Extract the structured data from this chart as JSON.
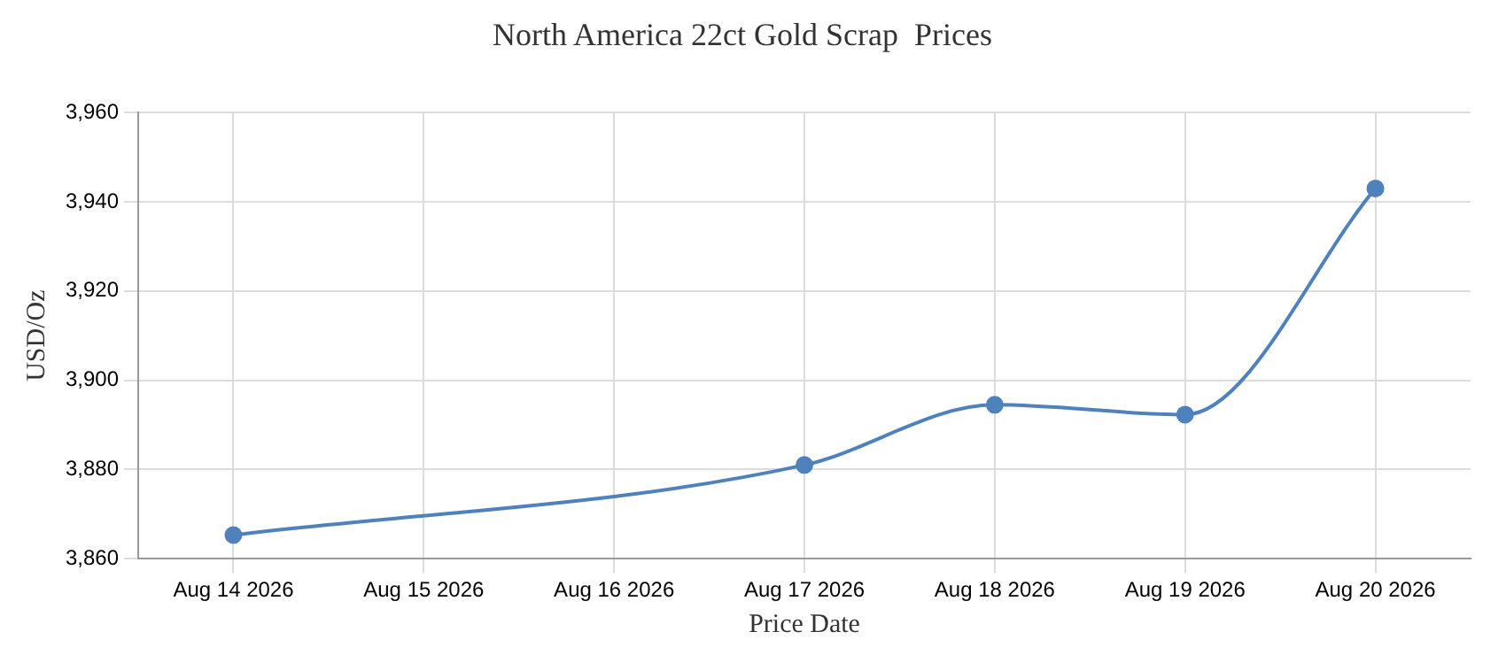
{
  "chart_data": {
    "type": "line",
    "title": "North America 22ct Gold Scrap  Prices",
    "xlabel": "Price Date",
    "ylabel": "USD/Oz",
    "x": [
      "2026-08-14",
      "2026-08-17",
      "2026-08-18",
      "2026-08-19",
      "2026-08-20"
    ],
    "series": [
      {
        "color": "#4f81bc",
        "values": [
          3865.3,
          3881,
          3894.5,
          3892.3,
          3943
        ]
      }
    ],
    "xlim": [
      "2026-08-13T12:00",
      "2026-08-20T12:00"
    ],
    "xticks": [
      {
        "value": "2026-08-14",
        "label": "Aug 14 2026"
      },
      {
        "value": "2026-08-15",
        "label": "Aug 15 2026"
      },
      {
        "value": "2026-08-16",
        "label": "Aug 16 2026"
      },
      {
        "value": "2026-08-17",
        "label": "Aug 17 2026"
      },
      {
        "value": "2026-08-18",
        "label": "Aug 18 2026"
      },
      {
        "value": "2026-08-19",
        "label": "Aug 19 2026"
      },
      {
        "value": "2026-08-20",
        "label": "Aug 20 2026"
      }
    ],
    "ylim": [
      3860,
      3960
    ],
    "yticks": [
      {
        "value": 3860,
        "label": "3,860"
      },
      {
        "value": 3880,
        "label": "3,880"
      },
      {
        "value": 3900,
        "label": "3,900"
      },
      {
        "value": 3920,
        "label": "3,920"
      },
      {
        "value": 3940,
        "label": "3,940"
      },
      {
        "value": 3960,
        "label": "3,960"
      }
    ],
    "grid": true,
    "legend": false,
    "marker": "circle",
    "line_style": "solid"
  }
}
